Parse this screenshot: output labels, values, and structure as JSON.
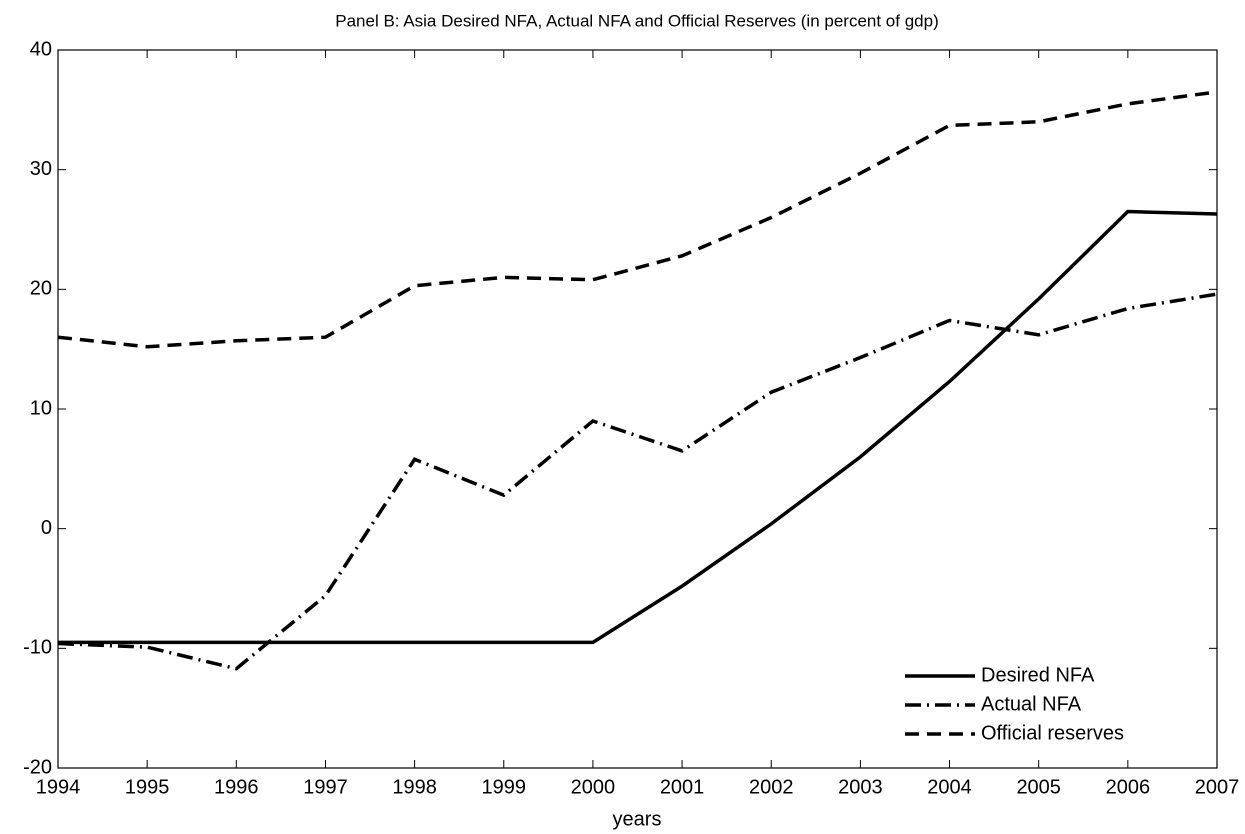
{
  "chart_data": {
    "type": "line",
    "title": "Panel B: Asia Desired NFA, Actual NFA and Official Reserves (in percent of gdp)",
    "x_label": "years",
    "x": [
      1994,
      1995,
      1996,
      1997,
      1998,
      1999,
      2000,
      2001,
      2002,
      2003,
      2004,
      2005,
      2006,
      2007
    ],
    "series": [
      {
        "name": "Desired NFA",
        "color": "#000000",
        "style": "solid",
        "values": [
          -9.5,
          -9.5,
          -9.5,
          -9.5,
          -9.5,
          -9.5,
          -9.5,
          -4.8,
          0.4,
          6,
          12.3,
          19.2,
          26.5,
          26.3
        ]
      },
      {
        "name": "Actual NFA",
        "color": "#000000",
        "style": "dashdot",
        "values": [
          -9.6,
          -9.9,
          -11.7,
          -5.6,
          5.8,
          2.8,
          9,
          6.5,
          11.4,
          14.3,
          17.4,
          16.2,
          18.4,
          19.6
        ]
      },
      {
        "name": "Official reserves",
        "color": "#000000",
        "style": "dashed",
        "values": [
          16,
          15.2,
          15.7,
          16,
          20.3,
          21,
          20.8,
          22.8,
          26,
          29.7,
          33.7,
          34,
          35.5,
          36.5
        ]
      }
    ],
    "xlim": [
      1994,
      2007
    ],
    "xticks": [
      1994,
      1995,
      1996,
      1997,
      1998,
      1999,
      2000,
      2001,
      2002,
      2003,
      2004,
      2005,
      2006,
      2007
    ],
    "ylim": [
      -20,
      40
    ],
    "yticks": [
      -20,
      -10,
      0,
      10,
      20,
      30,
      40
    ],
    "grid": false,
    "legend": "lower right"
  }
}
